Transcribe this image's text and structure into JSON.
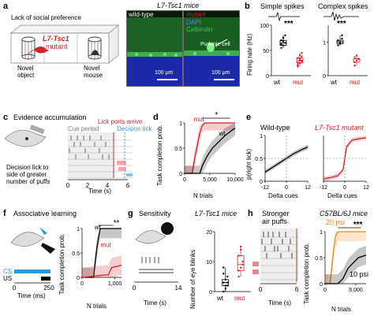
{
  "panels": {
    "a": {
      "letter": "a",
      "title": "L7-Tsc1 mice",
      "lack_label": "Lack of social preference",
      "mutant_label_line1": "L7-Tsc1",
      "mutant_label_line2": "mutant",
      "novel_object": "Novel\nobject",
      "novel_object_l1": "Novel",
      "novel_object_l2": "object",
      "novel_mouse_l1": "Novel",
      "novel_mouse_l2": "mouse",
      "wt_label": "wild-type",
      "mut_label": "mutant",
      "dapi": "DAPI",
      "calbindin": "Calbindin",
      "purkinje": "Purkinje cell",
      "scale1": "100 μm",
      "scale2": "100 μm"
    },
    "b": {
      "letter": "b",
      "simple": "Simple spikes",
      "complex": "Complex spikes",
      "ylabel": "Firing rate (Hz)",
      "sig": "***",
      "sig2": "***",
      "wt": "wt",
      "mut": "mut",
      "wt2": "wt",
      "mut2": "mut"
    },
    "c": {
      "letter": "c",
      "title": "Evidence accumulation",
      "lick_ports": "Lick ports arrive",
      "cue_period": "Cue period",
      "decision": "Decision lick",
      "desc_l1": "Decision lick to",
      "desc_l2": "side of greater",
      "desc_l3": "number of puffs",
      "xlabel": "Time (s)"
    },
    "d": {
      "letter": "d",
      "ylabel": "Task completion prob.",
      "xlabel": "N trials",
      "mut": "mut",
      "wt": "wt",
      "sig": "*"
    },
    "e": {
      "letter": "e",
      "wt_title": "Wild-type",
      "mut_title": "L7-Tsc1 mutant",
      "ylabel": "p(right lick)",
      "xlabel1": "Delta cues",
      "xlabel2": "Delta cues"
    },
    "f": {
      "letter": "f",
      "title": "Associative learning",
      "cs": "CS",
      "us": "US",
      "xlabel": "Time (ms)",
      "ylabel": "Task completion prob.",
      "xlabel2": "N trials",
      "wt": "wt",
      "mut": "mut",
      "sig": "**"
    },
    "g": {
      "letter": "g",
      "title": "Sensitivity",
      "title2": "L7-Tsc1 mice",
      "ylabel": "Number of eye blinks",
      "xlabel": "Time (s)",
      "wt": "wt",
      "mut": "mut",
      "sig": "**"
    },
    "h": {
      "letter": "h",
      "title_l1": "Stronger",
      "title_l2": "air puffs",
      "title2": "C57BL/6J mice",
      "psi20": "20 psi",
      "psi10": "10 psi",
      "ylabel": "Task completion prob.",
      "xlabel": "N trials",
      "tlabel": "Time (s)",
      "sig": "***"
    }
  },
  "colors": {
    "red": "#d2232a",
    "black": "#000000",
    "blue": "#2b9ad8",
    "orange": "#e8891e",
    "green_stain": "#2f9a3a",
    "dapi_blue": "#1e2fbf"
  },
  "chart_data": [
    {
      "panel": "b-simple",
      "type": "box",
      "categories": [
        "wt",
        "mut"
      ],
      "ylim": [
        0,
        100
      ],
      "yticks": [
        0,
        50,
        100
      ],
      "ylabel": "Firing rate (Hz)",
      "values": {
        "wt": [
          55,
          60,
          65,
          70,
          75,
          80,
          62,
          68
        ],
        "mut": [
          20,
          25,
          30,
          35,
          40,
          28,
          22,
          33,
          38,
          26,
          30,
          45,
          18
        ]
      }
    },
    {
      "panel": "b-complex",
      "type": "box",
      "categories": [
        "wt",
        "mut"
      ],
      "ylim": [
        0,
        1.5
      ],
      "yticks": [
        0,
        1
      ],
      "values": {
        "wt": [
          0.9,
          1.0,
          1.1,
          1.05,
          0.95,
          1.2
        ],
        "mut": [
          0.3,
          0.45,
          0.5,
          0.55,
          0.6,
          0.5,
          0.4
        ]
      }
    },
    {
      "panel": "d",
      "type": "line",
      "xlabel": "N trials",
      "ylabel": "Task completion prob.",
      "xticks": [
        0,
        5000,
        10000
      ],
      "xtick_labels": [
        "0",
        "5,000",
        "10,000"
      ],
      "yticks": [
        0,
        0.5,
        1
      ],
      "series": [
        {
          "name": "mut",
          "x": [
            0,
            1500,
            2000,
            2500,
            3000,
            3500,
            4000,
            10000
          ],
          "y": [
            0,
            0,
            0.3,
            0.55,
            0.8,
            0.95,
            1.0,
            1.0
          ]
        },
        {
          "name": "wt",
          "x": [
            0,
            3000,
            3500,
            4500,
            5500,
            6500,
            8000,
            10000
          ],
          "y": [
            0,
            0,
            0.15,
            0.35,
            0.5,
            0.6,
            0.75,
            0.9
          ]
        }
      ]
    },
    {
      "panel": "e-wt",
      "type": "line",
      "xlabel": "Delta cues",
      "ylabel": "p(right lick)",
      "xticks": [
        -12,
        0,
        12
      ],
      "yticks": [
        0,
        0.5,
        1
      ],
      "series": [
        {
          "x": [
            -12,
            -8,
            -4,
            0,
            4,
            8,
            12
          ],
          "y": [
            0.2,
            0.3,
            0.4,
            0.5,
            0.6,
            0.68,
            0.75
          ]
        }
      ]
    },
    {
      "panel": "e-mut",
      "type": "line",
      "xlabel": "Delta cues",
      "xticks": [
        -12,
        0,
        12
      ],
      "series": [
        {
          "x": [
            -12,
            -8,
            -4,
            -1,
            0,
            1,
            4,
            8,
            12
          ],
          "y": [
            0.05,
            0.08,
            0.12,
            0.25,
            0.5,
            0.75,
            0.9,
            0.93,
            0.95
          ]
        }
      ]
    },
    {
      "panel": "f",
      "type": "line",
      "xlabel": "N trials",
      "ylabel": "Task completion prob.",
      "xticks": [
        0,
        1000
      ],
      "xtick_labels": [
        "0",
        "1,000"
      ],
      "yticks": [
        0,
        0.5,
        1
      ],
      "series": [
        {
          "name": "wt",
          "x": [
            0,
            350,
            450,
            550,
            1200
          ],
          "y": [
            0,
            0,
            0.6,
            1.0,
            1.0
          ]
        },
        {
          "name": "mut",
          "x": [
            0,
            700,
            800,
            900,
            1200
          ],
          "y": [
            0,
            0.05,
            0.05,
            0.2,
            0.25
          ]
        }
      ]
    },
    {
      "panel": "g",
      "type": "box",
      "categories": [
        "wt",
        "mut"
      ],
      "ylim": [
        0,
        20
      ],
      "yticks": [
        0,
        10,
        20
      ],
      "ylabel": "Number of eye blinks",
      "values": {
        "wt": [
          0,
          1,
          2,
          3,
          4,
          5,
          6,
          2,
          3,
          8
        ],
        "mut": [
          5,
          8,
          10,
          12,
          15,
          9,
          7,
          14
        ]
      }
    },
    {
      "panel": "h",
      "type": "line",
      "xlabel": "N trials",
      "ylabel": "Task completion prob.",
      "xticks": [
        0,
        6000
      ],
      "xtick_labels": [
        "0",
        "6,000"
      ],
      "yticks": [
        0,
        0.5,
        1
      ],
      "series": [
        {
          "name": "20 psi",
          "x": [
            0,
            1000,
            1500,
            2000,
            2500,
            8000
          ],
          "y": [
            0,
            0,
            0.5,
            0.9,
            1.0,
            1.0
          ]
        },
        {
          "name": "10 psi",
          "x": [
            0,
            2500,
            3500,
            4500,
            5500,
            6500,
            8000
          ],
          "y": [
            0,
            0,
            0.1,
            0.3,
            0.4,
            0.5,
            0.55
          ]
        }
      ]
    }
  ]
}
